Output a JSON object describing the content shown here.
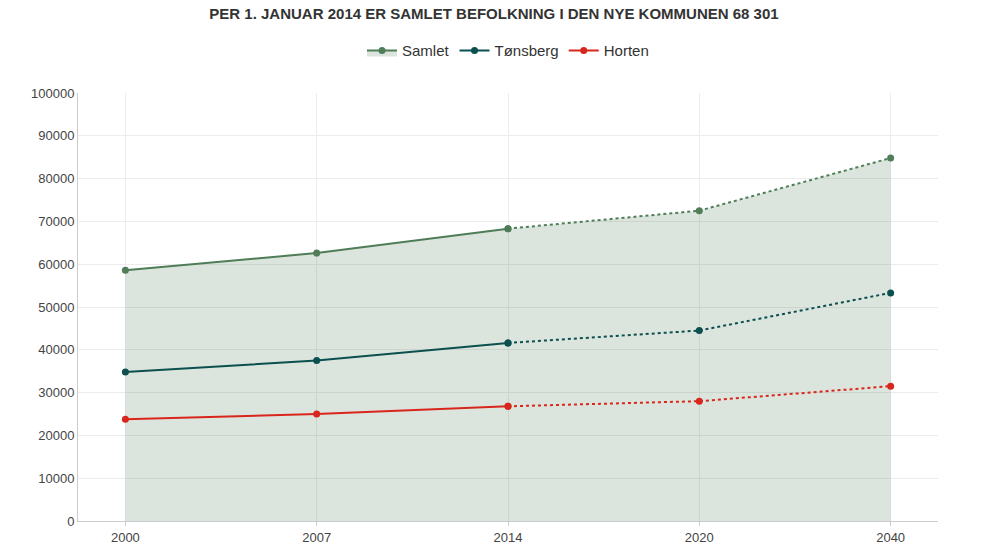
{
  "chart_data": {
    "type": "line",
    "title": "PER 1. JANUAR 2014 ER SAMLET BEFOLKNING I DEN NYE KOMMUNEN 68 301",
    "categories": [
      "2000",
      "2007",
      "2014",
      "2020",
      "2040"
    ],
    "series": [
      {
        "name": "Samlet",
        "type": "area",
        "color": "#4e7d57",
        "line_style": "solid",
        "marker": "circle",
        "values": [
          58600,
          62600,
          68301,
          null,
          null
        ]
      },
      {
        "name": "Samlet",
        "type": "area",
        "color": "#4e7d57",
        "line_style": "dotted",
        "marker": "circle",
        "values": [
          null,
          null,
          68301,
          72500,
          84800
        ]
      },
      {
        "name": "Tønsberg",
        "type": "line",
        "color": "#0b4f4f",
        "line_style": "solid",
        "marker": "circle",
        "values": [
          34800,
          37500,
          41600,
          null,
          null
        ]
      },
      {
        "name": "Tønsberg",
        "type": "line",
        "color": "#0b4f4f",
        "line_style": "dotted",
        "marker": "circle",
        "values": [
          null,
          null,
          41600,
          44500,
          53300
        ]
      },
      {
        "name": "Horten",
        "type": "line",
        "color": "#d9261c",
        "line_style": "solid",
        "marker": "circle",
        "values": [
          23800,
          25000,
          26800,
          null,
          null
        ]
      },
      {
        "name": "Horten",
        "type": "line",
        "color": "#d9261c",
        "line_style": "dotted",
        "marker": "circle",
        "values": [
          null,
          null,
          26800,
          28000,
          31500
        ]
      }
    ],
    "ylim": [
      0,
      100000
    ],
    "yticks": [
      0,
      10000,
      20000,
      30000,
      40000,
      50000,
      60000,
      70000,
      80000,
      90000,
      100000
    ],
    "grid": true,
    "legend": "top"
  }
}
